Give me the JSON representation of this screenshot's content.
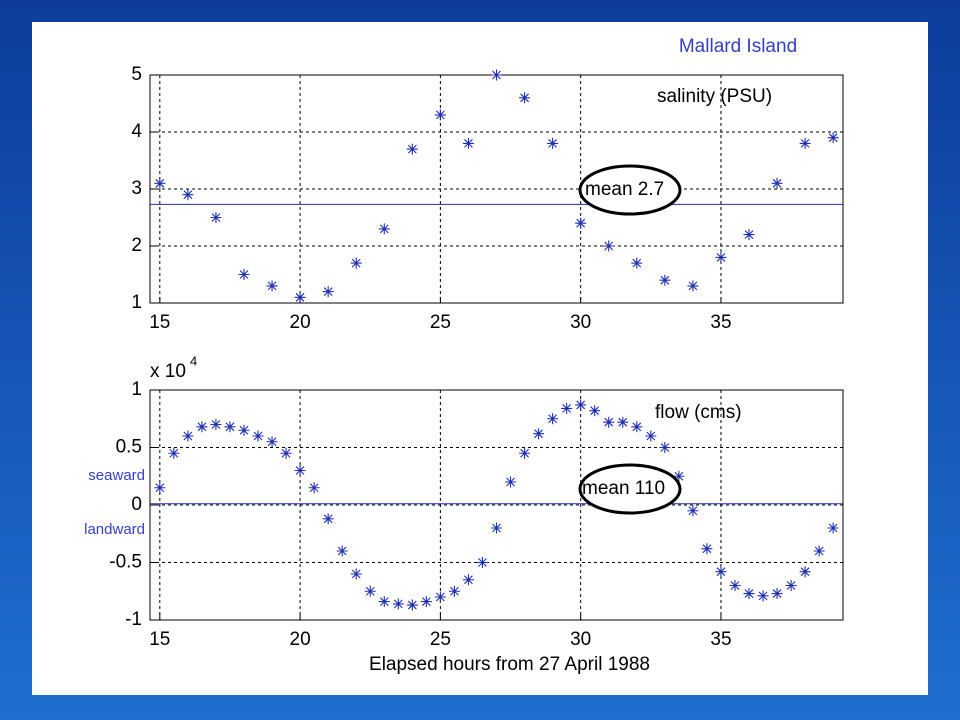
{
  "title": "Mallard Island",
  "chart_data": [
    {
      "type": "scatter",
      "color": "#1f2fb0",
      "grid": true,
      "annotation": "salinity (PSU)",
      "mean": 2.73,
      "mean_label": "mean 2.7",
      "x": [
        15,
        16,
        17,
        18,
        19,
        20,
        21,
        22,
        23,
        24,
        25,
        26,
        27,
        28,
        29,
        30,
        31,
        32,
        33,
        34,
        35,
        36,
        37,
        38,
        39
      ],
      "values": [
        3.1,
        2.9,
        2.5,
        1.5,
        1.3,
        1.1,
        1.2,
        1.7,
        2.3,
        3.7,
        4.3,
        3.8,
        5.0,
        4.6,
        3.8,
        2.4,
        2.0,
        1.7,
        1.4,
        1.3,
        1.8,
        2.2,
        3.1,
        3.8,
        3.9
      ],
      "xlim": [
        14.65,
        39.35
      ],
      "ylim": [
        1,
        5
      ],
      "xticks": [
        15,
        20,
        25,
        30,
        35
      ],
      "yticks": [
        1,
        2,
        3,
        4,
        5
      ]
    },
    {
      "type": "scatter",
      "color": "#1f2fb0",
      "grid": true,
      "annotation": "flow (cms)",
      "mean": 0.011,
      "mean_label": "mean 110",
      "y_multiplier": "x 10",
      "y_exponent": "4",
      "upper_side_label": "seaward",
      "lower_side_label": "landward",
      "xlabel": "Elapsed hours from 27 April 1988",
      "x": [
        15,
        15.5,
        16,
        16.5,
        17,
        17.5,
        18,
        18.5,
        19,
        19.5,
        20,
        20.5,
        21,
        21.5,
        22,
        22.5,
        23,
        23.5,
        24,
        24.5,
        25,
        25.5,
        26,
        26.5,
        27,
        27.5,
        28,
        28.5,
        29,
        29.5,
        30,
        30.5,
        31,
        31.5,
        32,
        32.5,
        33,
        33.5,
        34,
        34.5,
        35,
        35.5,
        36,
        36.5,
        37,
        37.5,
        38,
        38.5,
        39
      ],
      "values": [
        0.15,
        0.45,
        0.6,
        0.68,
        0.7,
        0.68,
        0.65,
        0.6,
        0.55,
        0.45,
        0.3,
        0.15,
        -0.12,
        -0.4,
        -0.6,
        -0.75,
        -0.84,
        -0.86,
        -0.87,
        -0.84,
        -0.8,
        -0.75,
        -0.65,
        -0.5,
        -0.2,
        0.2,
        0.45,
        0.62,
        0.75,
        0.84,
        0.87,
        0.82,
        0.72,
        0.72,
        0.68,
        0.6,
        0.5,
        0.25,
        -0.05,
        -0.38,
        -0.58,
        -0.7,
        -0.77,
        -0.79,
        -0.77,
        -0.7,
        -0.58,
        -0.4,
        -0.2
      ],
      "xlim": [
        14.65,
        39.35
      ],
      "ylim": [
        -1,
        1
      ],
      "xticks": [
        15,
        20,
        25,
        30,
        35
      ],
      "yticks": [
        -1,
        -0.5,
        0,
        0.5,
        1
      ]
    }
  ]
}
